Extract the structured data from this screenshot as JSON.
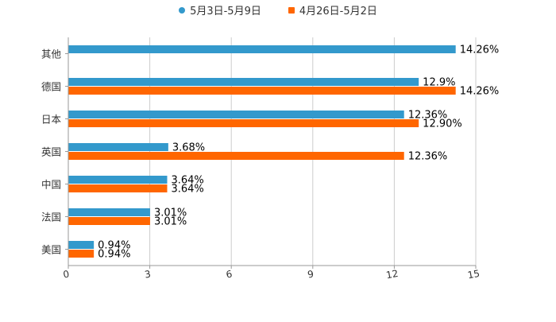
{
  "chart_data": {
    "type": "bar",
    "orientation": "horizontal",
    "categories": [
      "其他",
      "德国",
      "日本",
      "英国",
      "中国",
      "法国",
      "美国"
    ],
    "series": [
      {
        "name": "5月3日-5月9日",
        "color": "#3399cc",
        "values": [
          14.26,
          12.9,
          12.36,
          3.68,
          3.64,
          3.01,
          0.94
        ],
        "labels": [
          "14.26%",
          "12.9%",
          "12.36%",
          "3.68%",
          "3.64%",
          "3.01%",
          "0.94%"
        ]
      },
      {
        "name": "4月26日-5月2日",
        "color": "#ff6600",
        "values": [
          null,
          14.26,
          12.9,
          12.36,
          3.64,
          3.01,
          0.94
        ],
        "labels": [
          null,
          "14.26%",
          "12.90%",
          "12.36%",
          "3.64%",
          "3.01%",
          "0.94%"
        ]
      }
    ],
    "xlim": [
      0,
      15
    ],
    "xticks": [
      0,
      3,
      6,
      9,
      12,
      15
    ],
    "xtick_labels": [
      "0",
      "3",
      "6",
      "9",
      "12",
      "15"
    ],
    "grid": true,
    "legend": "top-center"
  }
}
